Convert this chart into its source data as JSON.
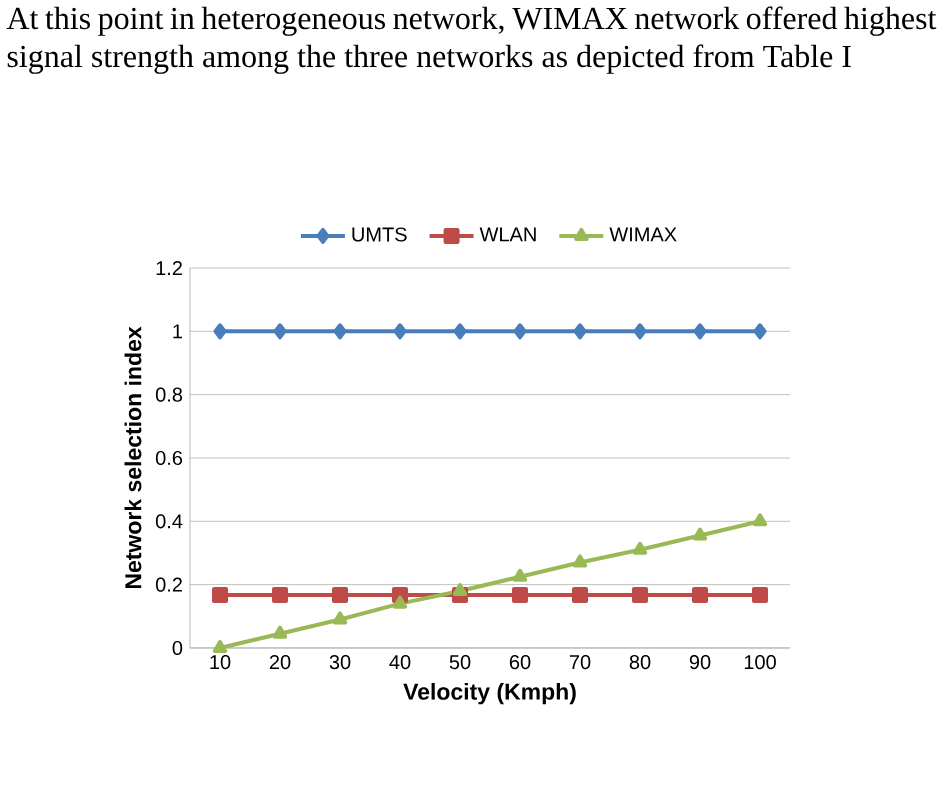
{
  "chart_data": {
    "type": "line",
    "annotations": [
      "At this point in heterogeneous network, WIMAX network offered highest signal strength among the three networks as depicted from Table I"
    ],
    "xlabel": "Velocity (Kmph)",
    "ylabel": "Network selection index",
    "categories": [
      "10",
      "20",
      "30",
      "40",
      "50",
      "60",
      "70",
      "80",
      "90",
      "100"
    ],
    "series": [
      {
        "name": "UMTS",
        "color": "#4a7ebb",
        "marker": "diamond",
        "values": [
          1,
          1,
          1,
          1,
          1,
          1,
          1,
          1,
          1,
          1
        ]
      },
      {
        "name": "WLAN",
        "color": "#be4b48",
        "marker": "square",
        "values": [
          0.167,
          0.167,
          0.167,
          0.167,
          0.167,
          0.167,
          0.167,
          0.167,
          0.167,
          0.167
        ]
      },
      {
        "name": "WIMAX",
        "color": "#98b954",
        "marker": "triangle",
        "values": [
          0,
          0.045,
          0.09,
          0.14,
          0.18,
          0.225,
          0.27,
          0.31,
          0.355,
          0.4
        ]
      }
    ],
    "ylim": [
      0,
      1.2
    ],
    "yticks": [
      0,
      0.2,
      0.4,
      0.6,
      0.8,
      1,
      1.2
    ],
    "grid": "y",
    "legend": "top"
  }
}
